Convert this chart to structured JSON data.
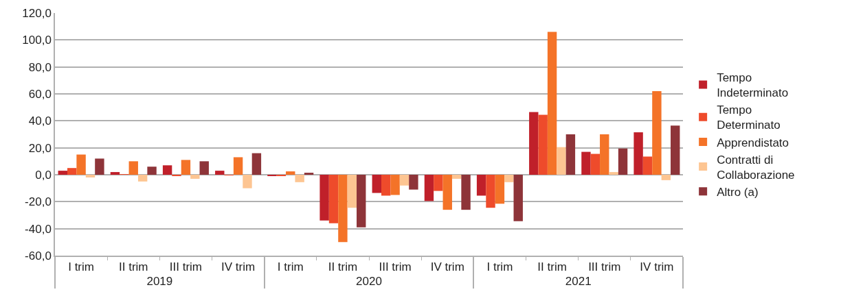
{
  "chart_data": {
    "type": "bar",
    "categories": [
      "I trim",
      "II trim",
      "III trim",
      "IV trim",
      "I trim",
      "II trim",
      "III trim",
      "IV trim",
      "I trim",
      "II trim",
      "III trim",
      "IV trim"
    ],
    "annotations": [
      "2019",
      "2020",
      "2021"
    ],
    "series": [
      {
        "name": "Tempo Indeterminato",
        "color": "#c0202a",
        "values": [
          3,
          2,
          7,
          3,
          -1,
          -34,
          -13.5,
          -19.5,
          -15.5,
          46.5,
          17,
          31.5
        ]
      },
      {
        "name": "Tempo Determinato",
        "color": "#ee4b2b",
        "values": [
          5,
          0.3,
          -1,
          -0.5,
          -1,
          -36,
          -15.5,
          -12,
          -24.5,
          44.5,
          15.5,
          13.5
        ]
      },
      {
        "name": "Apprendistato",
        "color": "#f47328",
        "values": [
          15,
          10,
          11,
          13,
          2.5,
          -50,
          -15,
          -26,
          -21.5,
          106,
          30,
          62
        ]
      },
      {
        "name": "Contratti di Collaborazione",
        "color": "#fdc592",
        "values": [
          -2,
          -5,
          -3,
          -10,
          -5.5,
          -24.5,
          -8,
          -3,
          -5.5,
          20.5,
          2,
          -4
        ]
      },
      {
        "name": "Altro (a)",
        "color": "#8e3439",
        "values": [
          12,
          6,
          10,
          16,
          1.5,
          -39,
          -11,
          -26,
          -34.5,
          30,
          19.5,
          36.5
        ]
      }
    ],
    "ylim": [
      -60,
      120
    ],
    "yticks": [
      {
        "value": -60,
        "label": "-60,0"
      },
      {
        "value": -40,
        "label": "-40,0"
      },
      {
        "value": -20,
        "label": "-20,0"
      },
      {
        "value": 0,
        "label": "0,0"
      },
      {
        "value": 20,
        "label": "20,0"
      },
      {
        "value": 40,
        "label": "40,0"
      },
      {
        "value": 60,
        "label": "60,0"
      },
      {
        "value": 80,
        "label": "80,0"
      },
      {
        "value": 100,
        "label": "100,0"
      },
      {
        "value": 120,
        "label": "120,0"
      }
    ],
    "grid": "y",
    "legend": "right"
  }
}
